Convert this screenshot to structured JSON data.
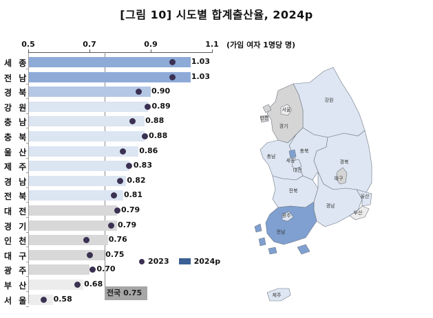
{
  "title": "[그림 10] 시도별 합계출산율, 2024p",
  "unit": "(가임 여자 1명당 명)",
  "axis": {
    "ticks": [
      "0.5",
      "0.7",
      "0.9",
      "1.1"
    ]
  },
  "national": {
    "label": "전국 0.75",
    "value": 0.75
  },
  "legend": {
    "dot_label": "2023",
    "bar_label": "2024p"
  },
  "colors": {
    "bar_top": "#8eabd8",
    "bar_mid": "#b4c7e4",
    "bar_light": "#dce5f2",
    "bar_gray": "#d8d8d8",
    "bar_lightgray": "#ececec",
    "dot": "#3b3152",
    "legend_bar": "#3a6095",
    "national_box": "#a6a6a6"
  },
  "chart_data": {
    "type": "bar",
    "orientation": "horizontal",
    "title": "[그림 10] 시도별 합계출산율, 2024p",
    "xlabel": "(가임 여자 1명당 명)",
    "xlim": [
      0.5,
      1.1
    ],
    "xticks": [
      0.5,
      0.7,
      0.9,
      1.1
    ],
    "reference_line": {
      "label": "전국 0.75",
      "value": 0.75
    },
    "categories": [
      "세 종",
      "전 남",
      "경 북",
      "강 원",
      "충 남",
      "충 북",
      "울 산",
      "제 주",
      "경 남",
      "전 북",
      "대 전",
      "경 기",
      "인 천",
      "대 구",
      "광 주",
      "부 산",
      "서 울"
    ],
    "series": [
      {
        "name": "2024p",
        "type": "bar",
        "values": [
          1.03,
          1.03,
          0.9,
          0.89,
          0.88,
          0.88,
          0.86,
          0.83,
          0.82,
          0.81,
          0.79,
          0.79,
          0.76,
          0.75,
          0.7,
          0.68,
          0.58
        ]
      },
      {
        "name": "2023",
        "type": "scatter",
        "values": [
          0.97,
          0.97,
          0.86,
          0.89,
          0.84,
          0.88,
          0.81,
          0.83,
          0.8,
          0.78,
          0.79,
          0.77,
          0.69,
          0.7,
          0.71,
          0.66,
          0.55
        ]
      }
    ],
    "legend_position": "lower-right inside",
    "grid": false
  },
  "rows": [
    {
      "label": "세 종",
      "value": 1.03,
      "prev": 0.97,
      "value_label": "1.03",
      "shade": "top"
    },
    {
      "label": "전 남",
      "value": 1.03,
      "prev": 0.97,
      "value_label": "1.03",
      "shade": "top"
    },
    {
      "label": "경 북",
      "value": 0.9,
      "prev": 0.86,
      "value_label": "0.90",
      "shade": "mid"
    },
    {
      "label": "강 원",
      "value": 0.89,
      "prev": 0.89,
      "value_label": "0.89",
      "shade": "light"
    },
    {
      "label": "충 남",
      "value": 0.88,
      "prev": 0.84,
      "value_label": "0.88",
      "shade": "light"
    },
    {
      "label": "충 북",
      "value": 0.88,
      "prev": 0.88,
      "value_label": "0.88",
      "shade": "light"
    },
    {
      "label": "울 산",
      "value": 0.86,
      "prev": 0.81,
      "value_label": "0.86",
      "shade": "light"
    },
    {
      "label": "제 주",
      "value": 0.83,
      "prev": 0.83,
      "value_label": "0.83",
      "shade": "light"
    },
    {
      "label": "경 남",
      "value": 0.82,
      "prev": 0.8,
      "value_label": "0.82",
      "shade": "light"
    },
    {
      "label": "전 북",
      "value": 0.81,
      "prev": 0.78,
      "value_label": "0.81",
      "shade": "light"
    },
    {
      "label": "대 전",
      "value": 0.79,
      "prev": 0.79,
      "value_label": "0.79",
      "shade": "gray"
    },
    {
      "label": "경 기",
      "value": 0.79,
      "prev": 0.77,
      "value_label": "0.79",
      "shade": "gray"
    },
    {
      "label": "인 천",
      "value": 0.76,
      "prev": 0.69,
      "value_label": "0.76",
      "shade": "gray"
    },
    {
      "label": "대 구",
      "value": 0.75,
      "prev": 0.7,
      "value_label": "0.75",
      "shade": "gray"
    },
    {
      "label": "광 주",
      "value": 0.7,
      "prev": 0.71,
      "value_label": "0.70",
      "shade": "gray"
    },
    {
      "label": "부 산",
      "value": 0.68,
      "prev": 0.66,
      "value_label": "0.68",
      "shade": "lightgray"
    },
    {
      "label": "서 울",
      "value": 0.58,
      "prev": 0.55,
      "value_label": "0.58",
      "shade": "lightgray"
    }
  ],
  "map": {
    "labels": {
      "seoul": "서울",
      "incheon": "인천",
      "gyeonggi": "경기",
      "gangwon": "강원",
      "chungnam": "충남",
      "chungbuk": "충북",
      "sejong": "세종",
      "daejeon": "대전",
      "gyeongbuk": "경북",
      "daegu": "대구",
      "jeonbuk": "전북",
      "gyeongnam": "경남",
      "ulsan": "울산",
      "busan": "부산",
      "gwangju": "광주",
      "jeonnam": "전남",
      "jeju": "제주"
    }
  }
}
